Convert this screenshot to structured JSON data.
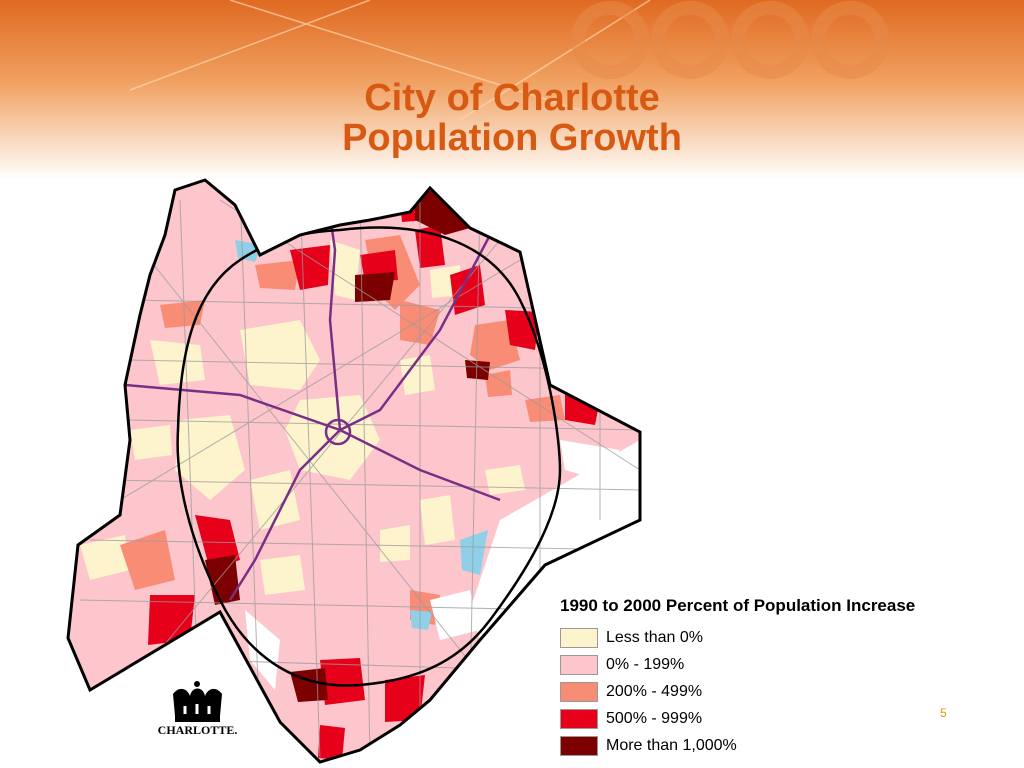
{
  "title": {
    "line1": "City of Charlotte",
    "line2": "Population Growth"
  },
  "legend": {
    "title": "1990 to 2000 Percent of Population Increase",
    "items": [
      {
        "label": "Less than 0%",
        "color": "#fdf3cc"
      },
      {
        "label": "0% - 199%",
        "color": "#fcc6cc"
      },
      {
        "label": "200% - 499%",
        "color": "#f98c74"
      },
      {
        "label": "500% - 999%",
        "color": "#e6001a"
      },
      {
        "label": "More than 1,000%",
        "color": "#7d0000"
      }
    ]
  },
  "logo": {
    "text": "CHARLOTTE."
  },
  "page_number": "5",
  "colors": {
    "title": "#d85a12",
    "highway": "#7a2f86",
    "county_border": "#000000",
    "water": "#8fd0e8"
  }
}
